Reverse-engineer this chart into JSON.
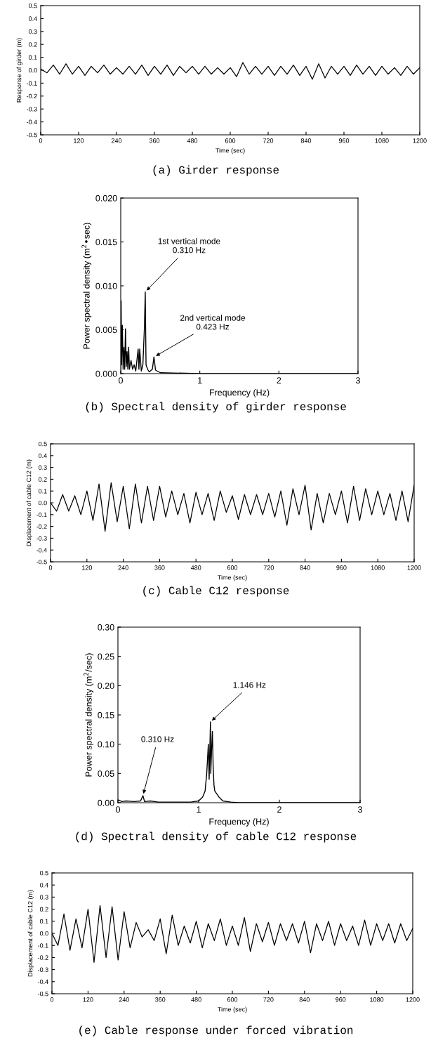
{
  "chart_data": [
    {
      "type": "line",
      "title": "(a) Girder response",
      "xlabel": "Time (sec)",
      "ylabel": "Response of girder (m)",
      "xlim": [
        0,
        1200
      ],
      "ylim": [
        -0.5,
        0.5
      ],
      "xticks": [
        0,
        120,
        240,
        360,
        480,
        600,
        720,
        840,
        960,
        1080,
        1200
      ],
      "yticks": [
        -0.5,
        -0.4,
        -0.3,
        -0.2,
        -0.1,
        {
          "value": 0,
          "label": "0.0"
        },
        0.1,
        0.2,
        0.3,
        0.4,
        0.5
      ],
      "grid": false,
      "legend": false,
      "series": [
        {
          "color": "#000000",
          "x": [
            0,
            20,
            40,
            60,
            80,
            100,
            120,
            140,
            160,
            180,
            200,
            220,
            240,
            260,
            280,
            300,
            320,
            340,
            360,
            380,
            400,
            420,
            440,
            460,
            480,
            500,
            520,
            540,
            560,
            580,
            600,
            620,
            640,
            660,
            680,
            700,
            720,
            740,
            760,
            780,
            800,
            820,
            840,
            860,
            880,
            900,
            920,
            940,
            960,
            980,
            1000,
            1020,
            1040,
            1060,
            1080,
            1100,
            1120,
            1140,
            1160,
            1180,
            1200
          ],
          "values": [
            0.01,
            -0.02,
            0.04,
            -0.03,
            0.05,
            -0.03,
            0.03,
            -0.04,
            0.03,
            -0.02,
            0.04,
            -0.03,
            0.02,
            -0.03,
            0.03,
            -0.03,
            0.04,
            -0.04,
            0.03,
            -0.03,
            0.04,
            -0.04,
            0.03,
            -0.02,
            0.03,
            -0.03,
            0.03,
            -0.03,
            0.02,
            -0.03,
            0.02,
            -0.05,
            0.06,
            -0.03,
            0.03,
            -0.03,
            0.03,
            -0.04,
            0.03,
            -0.03,
            0.04,
            -0.04,
            0.03,
            -0.07,
            0.05,
            -0.06,
            0.03,
            -0.03,
            0.03,
            -0.04,
            0.04,
            -0.03,
            0.03,
            -0.04,
            0.03,
            -0.03,
            0.02,
            -0.04,
            0.03,
            -0.03,
            0.02
          ]
        }
      ]
    },
    {
      "type": "line",
      "title": "(b) Spectral density of girder response",
      "xlabel": "Frequency (Hz)",
      "ylabel": "Power spectral density (m$^{2}$•sec)",
      "xlim": [
        0,
        3
      ],
      "ylim": [
        0,
        0.02
      ],
      "xticks": [
        0,
        1,
        2,
        3
      ],
      "yticks": [
        {
          "value": 0,
          "label": "0.000"
        },
        {
          "value": 0.005,
          "label": "0.005"
        },
        {
          "value": 0.01,
          "label": "0.010"
        },
        {
          "value": 0.015,
          "label": "0.015"
        },
        {
          "value": 0.02,
          "label": "0.020"
        }
      ],
      "grid": false,
      "legend": false,
      "annotations": [
        {
          "text": "1st vertical mode\n0.310 Hz",
          "x": 0.31,
          "y": 0.0093
        },
        {
          "text": "2nd vertical mode\n0.423 Hz",
          "x": 0.423,
          "y": 0.0019
        }
      ],
      "series": [
        {
          "color": "#000000",
          "x": [
            0,
            0.005,
            0.01,
            0.02,
            0.03,
            0.04,
            0.05,
            0.06,
            0.07,
            0.08,
            0.09,
            0.1,
            0.11,
            0.13,
            0.15,
            0.17,
            0.19,
            0.22,
            0.23,
            0.24,
            0.26,
            0.28,
            0.3,
            0.31,
            0.32,
            0.34,
            0.36,
            0.4,
            0.42,
            0.44,
            0.48,
            0.5,
            1,
            3
          ],
          "values": [
            0,
            0.0083,
            0.001,
            0.0055,
            0.0005,
            0.003,
            0.0005,
            0.0051,
            0.0008,
            0.0025,
            0.0005,
            0.003,
            0.0005,
            0.0015,
            0.0005,
            0.001,
            0.0003,
            0.0028,
            0.0005,
            0.0028,
            0.0003,
            0.001,
            0.0054,
            0.0093,
            0.001,
            0.0005,
            0.0002,
            0.0005,
            0.0019,
            0.0004,
            0.0002,
            0.0001,
            0,
            0
          ]
        }
      ]
    },
    {
      "type": "line",
      "title": "(c) Cable C12 response",
      "xlabel": "Time (sec)",
      "ylabel": "Displacement of cable C12 (m)",
      "xlim": [
        0,
        1200
      ],
      "ylim": [
        -0.5,
        0.5
      ],
      "xticks": [
        0,
        120,
        240,
        360,
        480,
        600,
        720,
        840,
        960,
        1080,
        1200
      ],
      "yticks": [
        -0.5,
        -0.4,
        -0.3,
        -0.2,
        -0.1,
        {
          "value": 0,
          "label": "0.0"
        },
        0.1,
        0.2,
        0.3,
        0.4,
        0.5
      ],
      "grid": false,
      "legend": false,
      "series": [
        {
          "color": "#000000",
          "x": [
            0,
            20,
            40,
            60,
            80,
            100,
            120,
            140,
            160,
            180,
            200,
            220,
            240,
            260,
            280,
            300,
            320,
            340,
            360,
            380,
            400,
            420,
            440,
            460,
            480,
            500,
            520,
            540,
            560,
            580,
            600,
            620,
            640,
            660,
            680,
            700,
            720,
            740,
            760,
            780,
            800,
            820,
            840,
            860,
            880,
            900,
            920,
            940,
            960,
            980,
            1000,
            1020,
            1040,
            1060,
            1080,
            1100,
            1120,
            1140,
            1160,
            1180,
            1200
          ],
          "values": [
            0,
            -0.07,
            0.07,
            -0.07,
            0.06,
            -0.1,
            0.1,
            -0.15,
            0.16,
            -0.24,
            0.17,
            -0.16,
            0.14,
            -0.22,
            0.16,
            -0.17,
            0.14,
            -0.15,
            0.14,
            -0.12,
            0.1,
            -0.1,
            0.08,
            -0.17,
            0.09,
            -0.1,
            0.08,
            -0.15,
            0.1,
            -0.08,
            0.06,
            -0.14,
            0.07,
            -0.1,
            0.07,
            -0.1,
            0.08,
            -0.12,
            0.1,
            -0.19,
            0.12,
            -0.1,
            0.15,
            -0.23,
            0.08,
            -0.17,
            0.08,
            -0.1,
            0.1,
            -0.17,
            0.14,
            -0.15,
            0.12,
            -0.1,
            0.1,
            -0.1,
            0.08,
            -0.15,
            0.1,
            -0.16,
            0.15
          ]
        }
      ]
    },
    {
      "type": "line",
      "title": "(d) Spectral density of cable C12 response",
      "xlabel": "Frequency (Hz)",
      "ylabel": "Power spectral density (m$^{2}$/sec)",
      "xlim": [
        0,
        3
      ],
      "ylim": [
        0,
        0.3
      ],
      "xticks": [
        0,
        1,
        2,
        3
      ],
      "yticks": [
        {
          "value": 0,
          "label": "0.00"
        },
        {
          "value": 0.05,
          "label": "0.05"
        },
        {
          "value": 0.1,
          "label": "0.10"
        },
        {
          "value": 0.15,
          "label": "0.15"
        },
        {
          "value": 0.2,
          "label": "0.20"
        },
        {
          "value": 0.25,
          "label": "0.25"
        },
        {
          "value": 0.3,
          "label": "0.30"
        }
      ],
      "grid": false,
      "legend": false,
      "annotations": [
        {
          "text": "1.146 Hz",
          "x": 1.146,
          "y": 0.138
        },
        {
          "text": "0.310 Hz",
          "x": 0.31,
          "y": 0.012
        }
      ],
      "series": [
        {
          "color": "#000000",
          "x": [
            0,
            0.05,
            0.1,
            0.2,
            0.28,
            0.31,
            0.33,
            0.4,
            0.5,
            0.7,
            0.9,
            1.0,
            1.05,
            1.08,
            1.1,
            1.12,
            1.13,
            1.146,
            1.15,
            1.16,
            1.17,
            1.18,
            1.19,
            1.2,
            1.25,
            1.3,
            1.4,
            1.5,
            3
          ],
          "values": [
            0.005,
            0.002,
            0.003,
            0.002,
            0.003,
            0.012,
            0.002,
            0.003,
            0.001,
            0.001,
            0.001,
            0.003,
            0.01,
            0.02,
            0.05,
            0.1,
            0.04,
            0.138,
            0.05,
            0.09,
            0.122,
            0.06,
            0.03,
            0.02,
            0.01,
            0.003,
            0.001,
            0,
            0
          ]
        }
      ]
    },
    {
      "type": "line",
      "title": "(e) Cable response under forced vibration",
      "xlabel": "Time (sec)",
      "ylabel": "Displacement of cable C12 (m)",
      "xlim": [
        0,
        1200
      ],
      "ylim": [
        -0.5,
        0.5
      ],
      "xticks": [
        0,
        120,
        240,
        360,
        480,
        600,
        720,
        840,
        960,
        1080,
        1200
      ],
      "yticks": [
        -0.5,
        -0.4,
        -0.3,
        -0.2,
        -0.1,
        {
          "value": 0,
          "label": "0.0"
        },
        0.1,
        0.2,
        0.3,
        0.4,
        0.5
      ],
      "grid": false,
      "legend": false,
      "series": [
        {
          "color": "#000000",
          "x": [
            0,
            20,
            40,
            60,
            80,
            100,
            120,
            140,
            160,
            180,
            200,
            220,
            240,
            260,
            280,
            300,
            320,
            340,
            360,
            380,
            400,
            420,
            440,
            460,
            480,
            500,
            520,
            540,
            560,
            580,
            600,
            620,
            640,
            660,
            680,
            700,
            720,
            740,
            760,
            780,
            800,
            820,
            840,
            860,
            880,
            900,
            920,
            940,
            960,
            980,
            1000,
            1020,
            1040,
            1060,
            1080,
            1100,
            1120,
            1140,
            1160,
            1180,
            1200
          ],
          "values": [
            0,
            -0.1,
            0.16,
            -0.14,
            0.12,
            -0.12,
            0.2,
            -0.24,
            0.23,
            -0.2,
            0.22,
            -0.22,
            0.18,
            -0.12,
            0.09,
            -0.03,
            0.03,
            -0.06,
            0.12,
            -0.17,
            0.15,
            -0.1,
            0.06,
            -0.08,
            0.1,
            -0.12,
            0.08,
            -0.06,
            0.12,
            -0.1,
            0.06,
            -0.1,
            0.13,
            -0.15,
            0.08,
            -0.07,
            0.09,
            -0.1,
            0.08,
            -0.06,
            0.08,
            -0.08,
            0.1,
            -0.16,
            0.08,
            -0.06,
            0.1,
            -0.1,
            0.08,
            -0.06,
            0.06,
            -0.1,
            0.11,
            -0.1,
            0.08,
            -0.06,
            0.08,
            -0.08,
            0.08,
            -0.06,
            0.04
          ]
        }
      ]
    }
  ]
}
